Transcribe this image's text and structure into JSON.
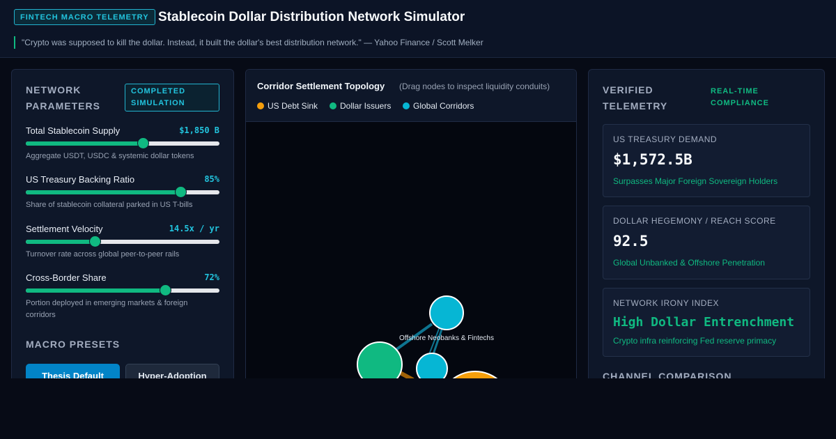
{
  "header": {
    "badge": "FINTECH MACRO TELEMETRY",
    "title": "Stablecoin Dollar Distribution Network Simulator",
    "quote": "\"Crypto was supposed to kill the dollar. Instead, it built the dollar's best distribution network.\" — Yahoo Finance / Scott Melker"
  },
  "left": {
    "title_line1": "NETWORK",
    "title_line2": "PARAMETERS",
    "status_line1": "COMPLETED",
    "status_line2": "SIMULATION",
    "params": [
      {
        "label": "Total Stablecoin Supply",
        "value": "$1,850 B",
        "level": 0.605,
        "desc": "Aggregate USDT, USDC & systemic dollar tokens"
      },
      {
        "label": "US Treasury Backing Ratio",
        "value": "85%",
        "level": 0.8,
        "desc": "Share of stablecoin collateral parked in US T-bills"
      },
      {
        "label": "Settlement Velocity",
        "value": "14.5x / yr",
        "level": 0.355,
        "desc": "Turnover rate across global peer-to-peer rails"
      },
      {
        "label": "Cross-Border Share",
        "value": "72%",
        "level": 0.718,
        "desc": "Portion deployed in emerging markets & foreign corridors"
      }
    ],
    "presets_title": "MACRO PRESETS",
    "preset_buttons": [
      "Thesis Default",
      "Hyper-Adoption"
    ]
  },
  "center": {
    "title": "Corridor Settlement Topology",
    "subtitle": "(Drag nodes to inspect liquidity conduits)",
    "legend": [
      {
        "label": "US Debt Sink",
        "color": "#f59e0b"
      },
      {
        "label": "Dollar Issuers",
        "color": "#10b981"
      },
      {
        "label": "Global Corridors",
        "color": "#06b6d4"
      }
    ],
    "node_labels": [
      "Offshore Neobanks & Fintechs"
    ]
  },
  "right": {
    "title_line1": "VERIFIED",
    "title_line2": "TELEMETRY",
    "status_line1": "REAL-TIME",
    "status_line2": "COMPLIANCE",
    "cards": [
      {
        "title": "US TREASURY DEMAND",
        "value": "$1,572.5B",
        "sub": "Surpasses Major Foreign Sovereign Holders"
      },
      {
        "title": "DOLLAR HEGEMONY / REACH SCORE",
        "value": "92.5",
        "sub": "Global Unbanked & Offshore Penetration"
      },
      {
        "title": "NETWORK IRONY INDEX",
        "value": "High Dollar Entrenchment",
        "sub": "Crypto infra reinforcing Fed reserve primacy"
      }
    ],
    "channel_title": "CHANNEL COMPARISON"
  }
}
